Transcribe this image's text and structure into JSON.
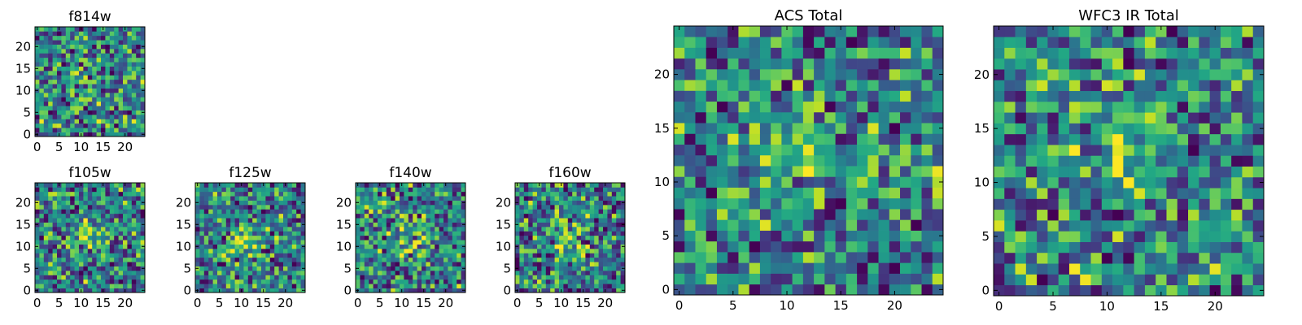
{
  "colormap": "viridis",
  "chart_data": [
    {
      "type": "heatmap",
      "title": "f814w",
      "x_ticks": [
        "0",
        "5",
        "10",
        "15",
        "20"
      ],
      "y_ticks": [
        "0",
        "5",
        "10",
        "15",
        "20"
      ],
      "xlim": [
        -0.5,
        24.5
      ],
      "ylim": [
        -0.5,
        24.5
      ],
      "grid_size": [
        25,
        25
      ],
      "seed": 11,
      "hotspot": [
        10,
        13
      ]
    },
    {
      "type": "heatmap",
      "title": "f105w",
      "x_ticks": [
        "0",
        "5",
        "10",
        "15",
        "20"
      ],
      "y_ticks": [
        "0",
        "5",
        "10",
        "15",
        "20"
      ],
      "xlim": [
        -0.5,
        24.5
      ],
      "ylim": [
        -0.5,
        24.5
      ],
      "grid_size": [
        25,
        25
      ],
      "seed": 23,
      "hotspot": [
        11,
        12
      ]
    },
    {
      "type": "heatmap",
      "title": "f125w",
      "x_ticks": [
        "0",
        "5",
        "10",
        "15",
        "20"
      ],
      "y_ticks": [
        "0",
        "5",
        "10",
        "15",
        "20"
      ],
      "xlim": [
        -0.5,
        24.5
      ],
      "ylim": [
        -0.5,
        24.5
      ],
      "grid_size": [
        25,
        25
      ],
      "seed": 37,
      "hotspot": [
        11,
        12
      ]
    },
    {
      "type": "heatmap",
      "title": "f140w",
      "x_ticks": [
        "0",
        "5",
        "10",
        "15",
        "20"
      ],
      "y_ticks": [
        "0",
        "5",
        "10",
        "15",
        "20"
      ],
      "xlim": [
        -0.5,
        24.5
      ],
      "ylim": [
        -0.5,
        24.5
      ],
      "grid_size": [
        25,
        25
      ],
      "seed": 51,
      "hotspot": [
        12,
        12
      ]
    },
    {
      "type": "heatmap",
      "title": "f160w",
      "x_ticks": [
        "0",
        "5",
        "10",
        "15",
        "20"
      ],
      "y_ticks": [
        "0",
        "5",
        "10",
        "15",
        "20"
      ],
      "xlim": [
        -0.5,
        24.5
      ],
      "ylim": [
        -0.5,
        24.5
      ],
      "grid_size": [
        25,
        25
      ],
      "seed": 67,
      "hotspot": [
        11,
        12
      ]
    },
    {
      "type": "heatmap",
      "title": "ACS Total",
      "x_ticks": [
        "0",
        "5",
        "10",
        "15",
        "20"
      ],
      "y_ticks": [
        "0",
        "5",
        "10",
        "15",
        "20"
      ],
      "xlim": [
        -0.5,
        24.5
      ],
      "ylim": [
        -0.5,
        24.5
      ],
      "grid_size": [
        25,
        25
      ],
      "seed": 79,
      "hotspot": [
        10,
        13
      ]
    },
    {
      "type": "heatmap",
      "title": "WFC3 IR Total",
      "x_ticks": [
        "0",
        "5",
        "10",
        "15",
        "20"
      ],
      "y_ticks": [
        "0",
        "5",
        "10",
        "15",
        "20"
      ],
      "xlim": [
        -0.5,
        24.5
      ],
      "ylim": [
        -0.5,
        24.5
      ],
      "grid_size": [
        25,
        25
      ],
      "seed": 97,
      "hotspot": [
        12,
        13
      ]
    }
  ]
}
